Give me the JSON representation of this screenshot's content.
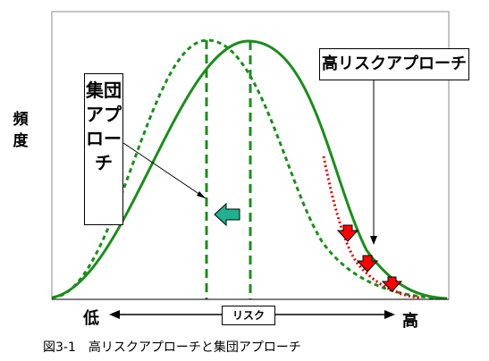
{
  "diagram": {
    "y_axis_label": "頻度",
    "x_axis_label": "リスク",
    "x_low_label": "低",
    "x_high_label": "高",
    "population_approach_label": "集団アプローチ",
    "high_risk_approach_label": "高リスクアプローチ",
    "caption": "図3-1　高リスクアプローチと集団アプローチ",
    "colors": {
      "curve": "#1e8c1e",
      "dashed_curve": "#1e8c1e",
      "high_risk_dotted": "#e00000",
      "shift_arrow": "#20b090",
      "down_arrows": "#ff0000"
    }
  }
}
